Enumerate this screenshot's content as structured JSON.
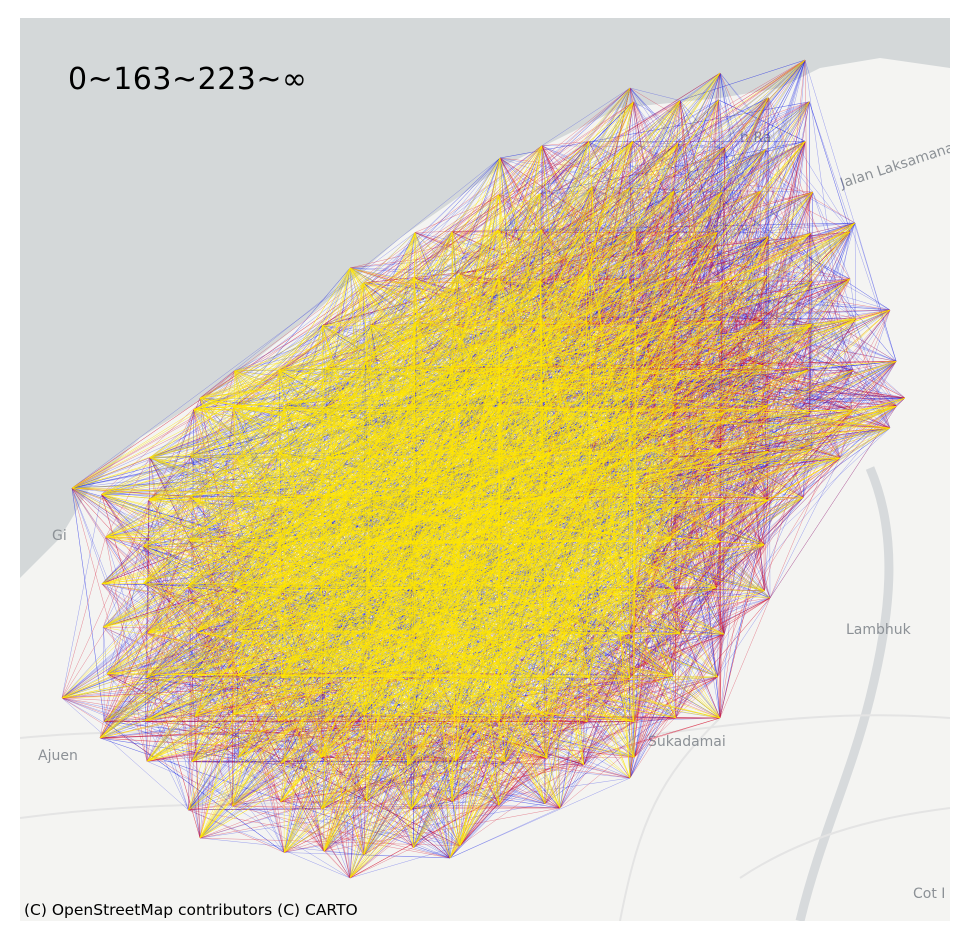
{
  "legend": {
    "label": "0~163~223~∞"
  },
  "attribution": "(C) OpenStreetMap contributors (C) CARTO",
  "place_labels": [
    {
      "text": "Lambhuk"
    },
    {
      "text": "Ajuen"
    },
    {
      "text": "Sukadamai"
    },
    {
      "text": "Gi"
    },
    {
      "text": "Cot I"
    },
    {
      "text": "Jalan Laksamana"
    },
    {
      "text": "h Ra"
    }
  ],
  "flow_classes": [
    {
      "range": "0~163",
      "color": "#0a14e6"
    },
    {
      "range": "163~223",
      "color": "#d41230"
    },
    {
      "range": "223~∞",
      "color": "#ffe600"
    }
  ],
  "colors": {
    "sea": "#d4d8d9",
    "land": "#f4f4f2",
    "road": "#e4e4e4"
  }
}
